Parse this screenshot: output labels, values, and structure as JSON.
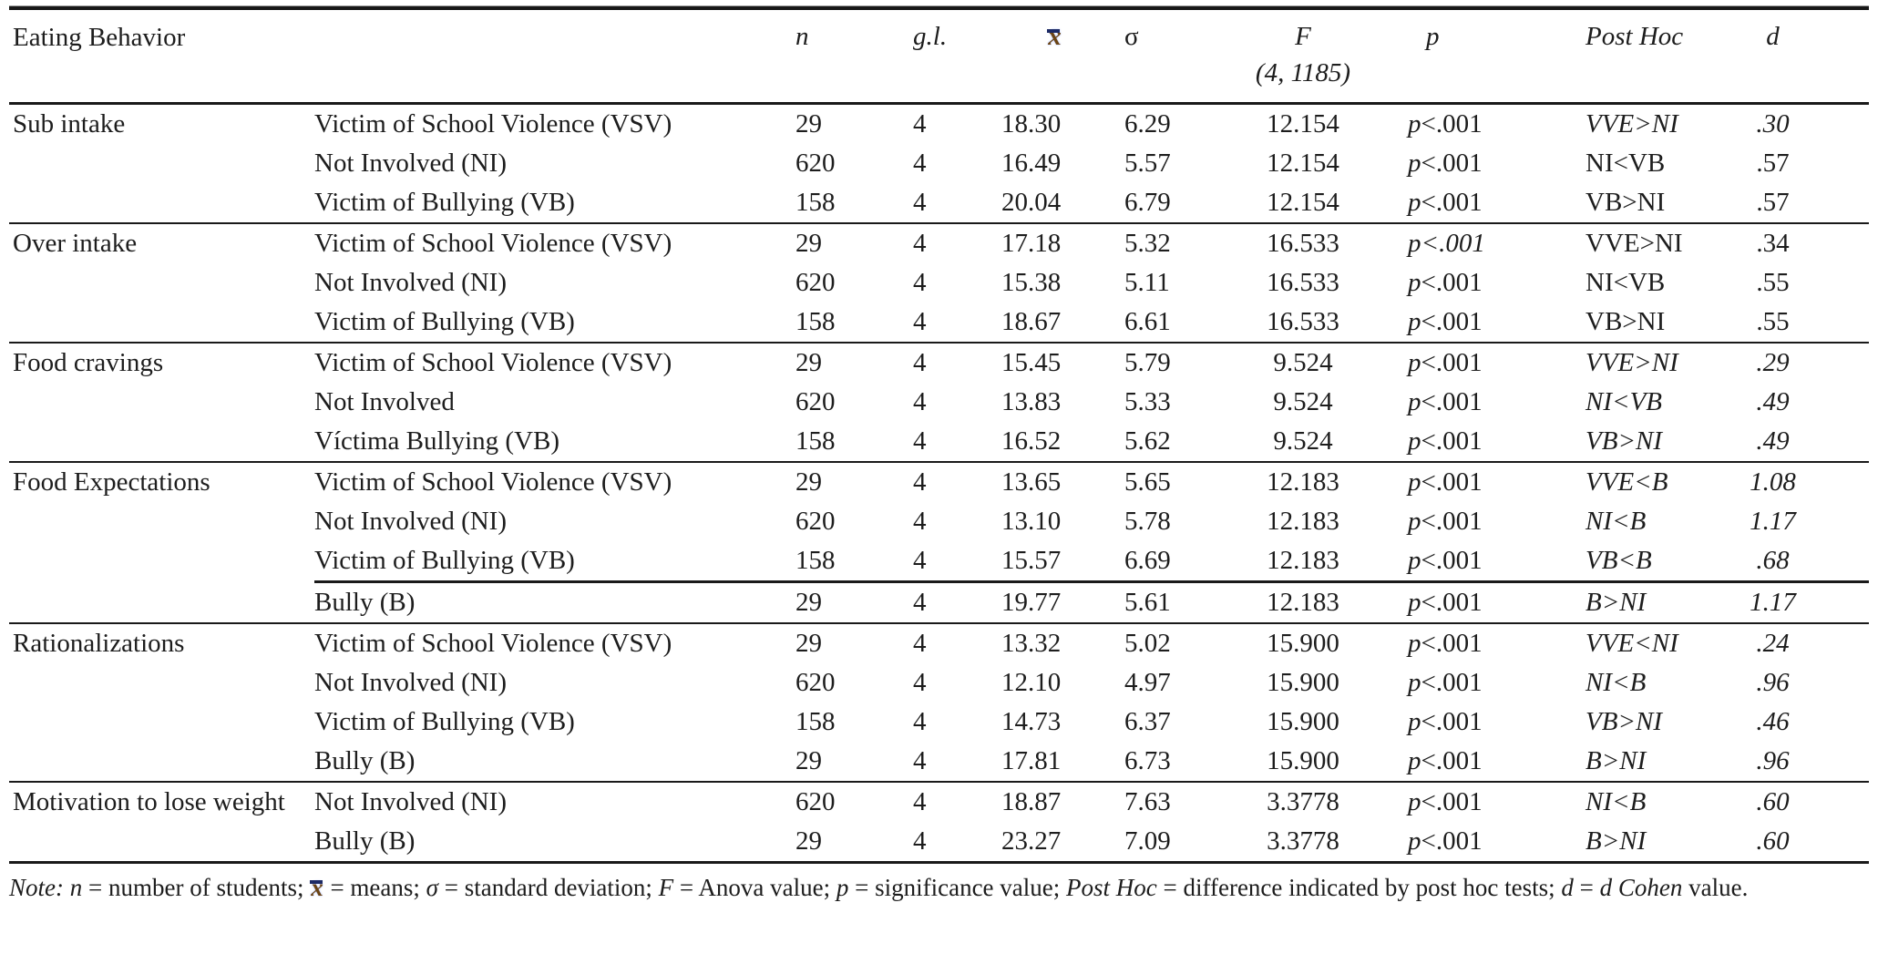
{
  "page": {
    "background": "#ffffff",
    "text_color": "#1d1d1d",
    "rule_color": "#1a1a1a"
  },
  "table": {
    "header": {
      "behavior": "Eating Behavior",
      "n": "n",
      "gl": "g.l.",
      "mean_symbol": "x̄",
      "sigma": "σ",
      "f_line1": "F",
      "f_line2": "(4, 1185)",
      "p": "p",
      "posthoc": "Post Hoc",
      "d": "d"
    },
    "blocks": [
      {
        "behavior": "Sub intake",
        "rows": [
          {
            "group": "Victim of School Violence (VSV)",
            "n": "29",
            "gl": "4",
            "mean": "18.30",
            "sigma": "6.29",
            "f": "12.154",
            "p_prefix": "p",
            "p_rest": "<.001",
            "p_rest_italic": false,
            "posthoc": "VVE>NI",
            "posthoc_italic": true,
            "d": ".30",
            "d_italic": true
          },
          {
            "group": "Not Involved (NI)",
            "n": "620",
            "gl": "4",
            "mean": "16.49",
            "sigma": "5.57",
            "f": "12.154",
            "p_prefix": "p",
            "p_rest": "<.001",
            "p_rest_italic": false,
            "posthoc": "NI<VB",
            "posthoc_italic": false,
            "d": ".57",
            "d_italic": false
          },
          {
            "group": "Victim of Bullying (VB)",
            "n": "158",
            "gl": "4",
            "mean": "20.04",
            "sigma": "6.79",
            "f": "12.154",
            "p_prefix": "p",
            "p_rest": "<.001",
            "p_rest_italic": false,
            "posthoc": "VB>NI",
            "posthoc_italic": false,
            "d": ".57",
            "d_italic": false
          }
        ]
      },
      {
        "behavior": "Over intake",
        "rows": [
          {
            "group": "Victim of School Violence (VSV)",
            "n": "29",
            "gl": "4",
            "mean": "17.18",
            "sigma": "5.32",
            "f": "16.533",
            "p_prefix": "p",
            "p_rest": "<.001",
            "p_rest_italic": true,
            "posthoc": "VVE>NI",
            "posthoc_italic": false,
            "d": ".34",
            "d_italic": false
          },
          {
            "group": "Not Involved (NI)",
            "n": "620",
            "gl": "4",
            "mean": "15.38",
            "sigma": "5.11",
            "f": "16.533",
            "p_prefix": "p",
            "p_rest": "<.001",
            "p_rest_italic": false,
            "posthoc": "NI<VB",
            "posthoc_italic": false,
            "d": ".55",
            "d_italic": false
          },
          {
            "group": "Victim of Bullying (VB)",
            "n": "158",
            "gl": "4",
            "mean": "18.67",
            "sigma": "6.61",
            "f": "16.533",
            "p_prefix": "p",
            "p_rest": "<.001",
            "p_rest_italic": false,
            "posthoc": "VB>NI",
            "posthoc_italic": false,
            "d": ".55",
            "d_italic": false
          }
        ]
      },
      {
        "behavior": "Food cravings",
        "rows": [
          {
            "group": "Victim of School Violence (VSV)",
            "n": "29",
            "gl": "4",
            "mean": "15.45",
            "sigma": "5.79",
            "f": "9.524",
            "p_prefix": "p",
            "p_rest": "<.001",
            "p_rest_italic": false,
            "posthoc": "VVE>NI",
            "posthoc_italic": true,
            "d": ".29",
            "d_italic": true
          },
          {
            "group": "Not Involved",
            "n": "620",
            "gl": "4",
            "mean": "13.83",
            "sigma": "5.33",
            "f": "9.524",
            "p_prefix": "p",
            "p_rest": "<.001",
            "p_rest_italic": false,
            "posthoc": "NI<VB",
            "posthoc_italic": true,
            "d": ".49",
            "d_italic": true
          },
          {
            "group": "Víctima Bullying (VB)",
            "n": "158",
            "gl": "4",
            "mean": "16.52",
            "sigma": "5.62",
            "f": "9.524",
            "p_prefix": "p",
            "p_rest": "<.001",
            "p_rest_italic": false,
            "posthoc": "VB>NI",
            "posthoc_italic": true,
            "d": ".49",
            "d_italic": true
          }
        ]
      },
      {
        "behavior": "Food Expectations",
        "partial_rule_after_row": 2,
        "rows": [
          {
            "group": "Victim of School Violence (VSV)",
            "n": "29",
            "gl": "4",
            "mean": "13.65",
            "sigma": "5.65",
            "f": "12.183",
            "p_prefix": "p",
            "p_rest": "<.001",
            "p_rest_italic": false,
            "posthoc": "VVE<B",
            "posthoc_italic": true,
            "d": "1.08",
            "d_italic": true
          },
          {
            "group": "Not Involved (NI)",
            "n": "620",
            "gl": "4",
            "mean": "13.10",
            "sigma": "5.78",
            "f": "12.183",
            "p_prefix": "p",
            "p_rest": "<.001",
            "p_rest_italic": false,
            "posthoc": "NI<B",
            "posthoc_italic": true,
            "d": "1.17",
            "d_italic": true
          },
          {
            "group": "Victim of Bullying (VB)",
            "n": "158",
            "gl": "4",
            "mean": "15.57",
            "sigma": "6.69",
            "f": "12.183",
            "p_prefix": "p",
            "p_rest": "<.001",
            "p_rest_italic": false,
            "posthoc": "VB<B",
            "posthoc_italic": true,
            "d": ".68",
            "d_italic": true
          },
          {
            "group": "Bully (B)",
            "n": "29",
            "gl": "4",
            "mean": "19.77",
            "sigma": "5.61",
            "f": "12.183",
            "p_prefix": "p",
            "p_rest": "<.001",
            "p_rest_italic": false,
            "posthoc": "B>NI",
            "posthoc_italic": true,
            "d": "1.17",
            "d_italic": true
          }
        ]
      },
      {
        "behavior": "Rationalizations",
        "rows": [
          {
            "group": "Victim of School Violence (VSV)",
            "n": "29",
            "gl": "4",
            "mean": "13.32",
            "sigma": "5.02",
            "f": "15.900",
            "p_prefix": "p",
            "p_rest": "<.001",
            "p_rest_italic": false,
            "posthoc": "VVE<NI",
            "posthoc_italic": true,
            "d": ".24",
            "d_italic": true
          },
          {
            "group": "Not Involved (NI)",
            "n": "620",
            "gl": "4",
            "mean": "12.10",
            "sigma": "4.97",
            "f": "15.900",
            "p_prefix": "p",
            "p_rest": "<.001",
            "p_rest_italic": false,
            "posthoc": "NI<B",
            "posthoc_italic": true,
            "d": ".96",
            "d_italic": true
          },
          {
            "group": "Victim of Bullying (VB)",
            "n": "158",
            "gl": "4",
            "mean": "14.73",
            "sigma": "6.37",
            "f": "15.900",
            "p_prefix": "p",
            "p_rest": "<.001",
            "p_rest_italic": false,
            "posthoc": "VB>NI",
            "posthoc_italic": true,
            "d": ".46",
            "d_italic": true
          },
          {
            "group": "Bully (B)",
            "n": "29",
            "gl": "4",
            "mean": "17.81",
            "sigma": "6.73",
            "f": "15.900",
            "p_prefix": "p",
            "p_rest": "<.001",
            "p_rest_italic": false,
            "posthoc": "B>NI",
            "posthoc_italic": true,
            "d": ".96",
            "d_italic": true
          }
        ]
      },
      {
        "behavior": "Motivation to lose weight",
        "rows": [
          {
            "group": "Not Involved (NI)",
            "n": "620",
            "gl": "4",
            "mean": "18.87",
            "sigma": "7.63",
            "f": "3.3778",
            "p_prefix": "p",
            "p_rest": "<.001",
            "p_rest_italic": false,
            "posthoc": "NI<B",
            "posthoc_italic": true,
            "d": ".60",
            "d_italic": true
          },
          {
            "group": "Bully (B)",
            "n": "29",
            "gl": "4",
            "mean": "23.27",
            "sigma": "7.09",
            "f": "3.3778",
            "p_prefix": "p",
            "p_rest": "<.001",
            "p_rest_italic": false,
            "posthoc": "B>NI",
            "posthoc_italic": true,
            "d": ".60",
            "d_italic": true
          }
        ]
      }
    ],
    "note_segments": [
      {
        "t": "Note:",
        "i": true
      },
      {
        "t": " ",
        "i": false
      },
      {
        "t": "n",
        "i": true
      },
      {
        "t": " = number of students; ",
        "i": false
      },
      {
        "t": "x̄",
        "i": true,
        "xbar": true
      },
      {
        "t": " = means; ",
        "i": false
      },
      {
        "t": "σ",
        "i": true
      },
      {
        "t": " = standard deviation; ",
        "i": false
      },
      {
        "t": "F",
        "i": true
      },
      {
        "t": " = Anova value; ",
        "i": false
      },
      {
        "t": "p",
        "i": true
      },
      {
        "t": " = significance value; ",
        "i": false
      },
      {
        "t": "Post Hoc",
        "i": true
      },
      {
        "t": " = difference indicated by post hoc tests; ",
        "i": false
      },
      {
        "t": "d",
        "i": true
      },
      {
        "t": " = ",
        "i": false
      },
      {
        "t": "d Cohen",
        "i": true
      },
      {
        "t": " value.",
        "i": false
      }
    ]
  }
}
